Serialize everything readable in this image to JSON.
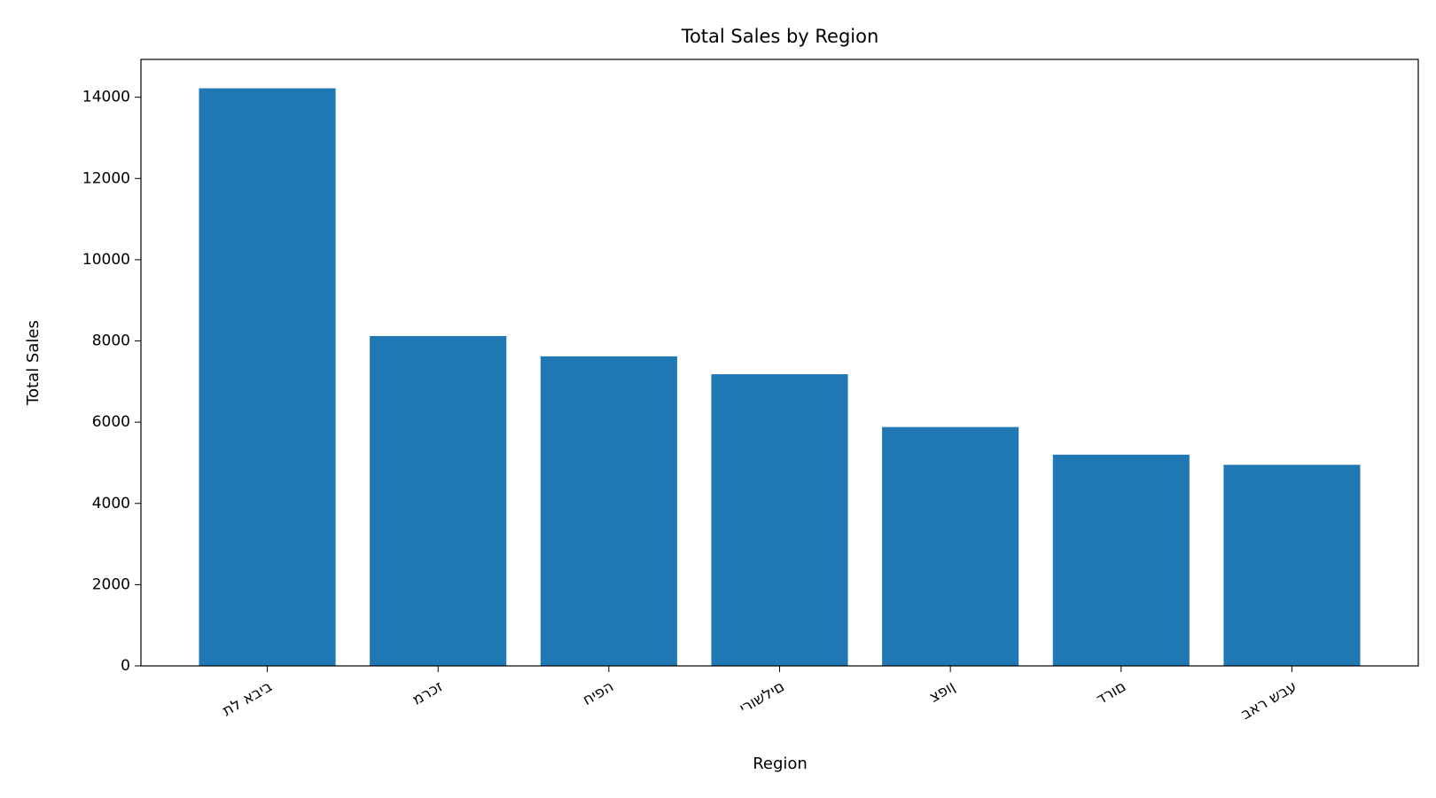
{
  "chart_data": {
    "type": "bar",
    "title": "Total Sales by Region",
    "x_label": "Region",
    "y_label": "Total Sales",
    "categories": [
      "תל אביב",
      "מרכז",
      "חיפה",
      "ירושלים",
      "צפון",
      "דרום",
      "באר שבע"
    ],
    "values": [
      14220,
      8120,
      7620,
      7180,
      5880,
      5200,
      4950
    ],
    "color": "#1f77b4",
    "ylim": [
      0,
      14931
    ],
    "yticks": [
      0,
      2000,
      4000,
      6000,
      8000,
      10000,
      12000,
      14000
    ],
    "grid": false
  }
}
